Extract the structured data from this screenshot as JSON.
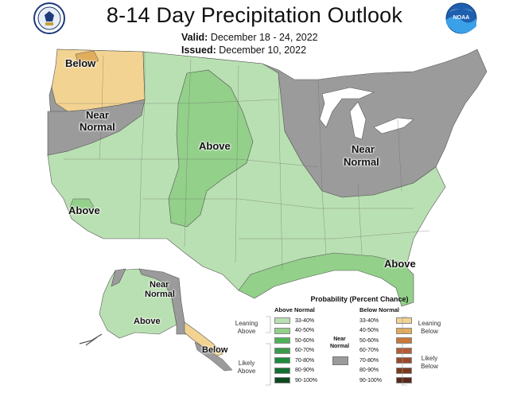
{
  "header": {
    "title": "8-14 Day Precipitation Outlook",
    "valid_label": "Valid:",
    "valid_value": "December 18 - 24, 2022",
    "issued_label": "Issued:",
    "issued_value": "December 10, 2022"
  },
  "logos": {
    "left": "doc-seal",
    "right": "noaa-logo",
    "right_text": "NOAA"
  },
  "map_labels": {
    "pacific_nw_below": "Below",
    "west_near_normal_1": "Near",
    "west_near_normal_2": "Normal",
    "central_above": "Above",
    "northeast_near_normal_1": "Near",
    "northeast_near_normal_2": "Normal",
    "southwest_above": "Above",
    "southeast_above": "Above",
    "alaska_near_normal_1": "Near",
    "alaska_near_normal_2": "Normal",
    "alaska_above": "Above",
    "alaska_below": "Below"
  },
  "legend": {
    "title": "Probability (Percent Chance)",
    "above_header": "Above Normal",
    "below_header": "Below Normal",
    "near_normal_label_1": "Near",
    "near_normal_label_2": "Normal",
    "leaning_above_1": "Leaning",
    "leaning_above_2": "Above",
    "likely_above_1": "Likely",
    "likely_above_2": "Above",
    "leaning_below_1": "Leaning",
    "leaning_below_2": "Below",
    "likely_below_1": "Likely",
    "likely_below_2": "Below",
    "above_items": [
      {
        "range": "33-40%",
        "color": "#b9e0b2"
      },
      {
        "range": "40-50%",
        "color": "#93d08a"
      },
      {
        "range": "50-60%",
        "color": "#4db356"
      },
      {
        "range": "60-70%",
        "color": "#3a9a4a"
      },
      {
        "range": "70-80%",
        "color": "#1f8a3c"
      },
      {
        "range": "80-90%",
        "color": "#11702e"
      },
      {
        "range": "90-100%",
        "color": "#0b4a1e"
      }
    ],
    "below_items": [
      {
        "range": "33-40%",
        "color": "#f3d391"
      },
      {
        "range": "40-50%",
        "color": "#e2ad5b"
      },
      {
        "range": "50-60%",
        "color": "#c9783a"
      },
      {
        "range": "60-70%",
        "color": "#b65b36"
      },
      {
        "range": "70-80%",
        "color": "#9a4a2a"
      },
      {
        "range": "80-90%",
        "color": "#7b3a1c"
      },
      {
        "range": "90-100%",
        "color": "#5a2a1a"
      }
    ]
  },
  "colors": {
    "near_normal": "#9b9b9b",
    "above_33_40": "#b9e0b2",
    "above_40_50": "#93d08a",
    "below_33_40": "#f3d391",
    "below_40_50": "#e2ad5b"
  }
}
